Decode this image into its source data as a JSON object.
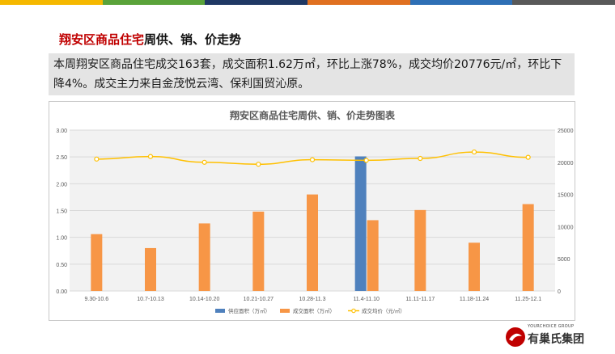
{
  "palette": {
    "bar_colors": [
      "#f5b800",
      "#5aa33a",
      "#1f3864",
      "#e07020",
      "#2e6fb5",
      "#595959"
    ]
  },
  "heading": {
    "highlight": "翔安区商品住宅",
    "rest": "周供、销、价走势"
  },
  "summary": {
    "text": "本周翔安区商品住宅成交163套，成交面积1.62万㎡，环比上涨78%，成交均价20776元/㎡，环比下降4%。成交主力来自金茂悦云湾、保利国贸沁原。"
  },
  "footer": {
    "logo_text": "有巢氏集团",
    "logo_subtext": "YOURCHOICE GROUP"
  },
  "chart_data": {
    "type": "bar",
    "title": "翔安区商品住宅周供、销、价走势图表",
    "categories": [
      "9.30-10.6",
      "10.7-10.13",
      "10.14-10.20",
      "10.21-10.27",
      "10.28-11.3",
      "11.4-11.10",
      "11.11-11.17",
      "11.18-11.24",
      "11.25-12.1"
    ],
    "left_axis": {
      "min": 0,
      "max": 3,
      "ticks": [
        "0.00",
        "0.50",
        "1.00",
        "1.50",
        "2.00",
        "2.50",
        "3.00"
      ]
    },
    "right_axis": {
      "min": 0,
      "max": 25000,
      "ticks": [
        "0",
        "5000",
        "10000",
        "15000",
        "20000",
        "25000"
      ]
    },
    "series": [
      {
        "name": "供应面积（万㎡）",
        "kind": "bar",
        "axis": "left",
        "color": "#4f81bd",
        "values": [
          null,
          null,
          null,
          null,
          null,
          2.51,
          null,
          null,
          null
        ]
      },
      {
        "name": "成交面积（万㎡）",
        "kind": "bar",
        "axis": "left",
        "color": "#f79646",
        "values": [
          1.06,
          0.8,
          1.26,
          1.48,
          1.8,
          1.32,
          1.51,
          0.9,
          1.62
        ]
      },
      {
        "name": "成交均价（元/㎡）",
        "kind": "line",
        "axis": "right",
        "color": "#ffc000",
        "values": [
          20500,
          20900,
          20000,
          19700,
          20400,
          20300,
          20600,
          21600,
          20776
        ]
      }
    ],
    "grid": true,
    "legend_position": "bottom"
  }
}
